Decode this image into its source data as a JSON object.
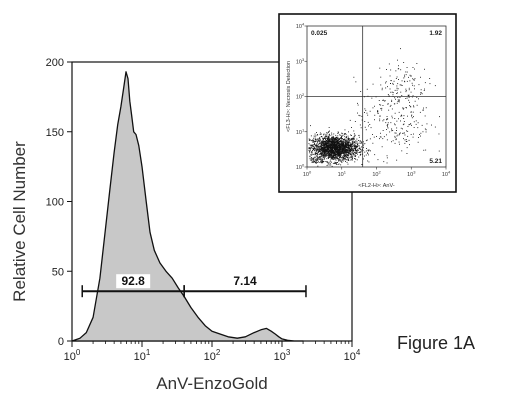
{
  "figure_label": "Figure 1A",
  "chart_data": [
    {
      "type": "area",
      "xlabel": "AnV-EnzoGold",
      "ylabel": "Relative Cell Number",
      "x_scale": "log",
      "xlim": [
        1,
        10000
      ],
      "ylim": [
        0,
        200
      ],
      "x_ticks": [
        1,
        10,
        100,
        1000,
        10000
      ],
      "x_tick_labels": [
        "10^0",
        "10^1",
        "10^2",
        "10^3",
        "10^4"
      ],
      "y_ticks": [
        0,
        50,
        100,
        150,
        200
      ],
      "y_tick_labels": [
        "0",
        "50",
        "100",
        "150",
        "200"
      ],
      "fill_color": "#c8c8c8",
      "series": [
        {
          "x": [
            1,
            1.3,
            1.6,
            2,
            2.5,
            3,
            3.5,
            4,
            4.5,
            5,
            5.5,
            5.9,
            6.3,
            6.7,
            7.1,
            7.6,
            8.2,
            9,
            10,
            11.5,
            13,
            15,
            18,
            22,
            27,
            33,
            40,
            50,
            63,
            80,
            100,
            130,
            170,
            230,
            300,
            400,
            500,
            600,
            700,
            800,
            900,
            1000,
            1200,
            1500,
            2000
          ],
          "y": [
            0,
            2,
            6,
            17,
            45,
            80,
            110,
            135,
            155,
            168,
            182,
            193,
            188,
            172,
            162,
            150,
            148,
            140,
            125,
            100,
            78,
            65,
            56,
            50,
            45,
            38,
            32,
            24,
            17,
            11,
            7,
            5,
            3,
            2,
            3,
            6,
            8,
            9,
            7,
            5,
            3,
            1.5,
            0.5,
            0,
            0
          ]
        }
      ],
      "gates": [
        {
          "label": "92.8",
          "x_range": [
            1.4,
            40
          ],
          "y": 40
        },
        {
          "label": "7.14",
          "x_range": [
            40,
            2200
          ],
          "y": 40
        }
      ]
    },
    {
      "type": "scatter",
      "xlabel": "<FL2-H>: AnV-",
      "ylabel": "<FL3-H>: Necrosis Detection",
      "x_scale": "log",
      "y_scale": "log",
      "xlim": [
        1,
        10000
      ],
      "ylim": [
        1,
        10000
      ],
      "x_ticks": [
        1,
        10,
        100,
        1000,
        10000
      ],
      "x_tick_labels": [
        "10^0",
        "10^1",
        "10^2",
        "10^3",
        "10^4"
      ],
      "y_ticks": [
        1,
        10,
        100,
        1000,
        10000
      ],
      "y_tick_labels": [
        "10^0",
        "10^1",
        "10^2",
        "10^3",
        "10^4"
      ],
      "quadrant_gate": {
        "x": 40,
        "y": 100
      },
      "quadrant_values": {
        "upper_left": "0.025",
        "upper_right": "1.92",
        "lower_left": "92.8",
        "lower_right": "5.21"
      },
      "clusters": [
        {
          "x_center": 6,
          "y_center": 3.5,
          "x_spread_decades": 0.35,
          "y_spread_decades": 0.18
        },
        {
          "x_center": 300,
          "y_center": 25,
          "x_spread_decades": 0.55,
          "y_spread_decades": 0.55
        },
        {
          "x_center": 600,
          "y_center": 250,
          "x_spread_decades": 0.35,
          "y_spread_decades": 0.3
        }
      ]
    }
  ]
}
